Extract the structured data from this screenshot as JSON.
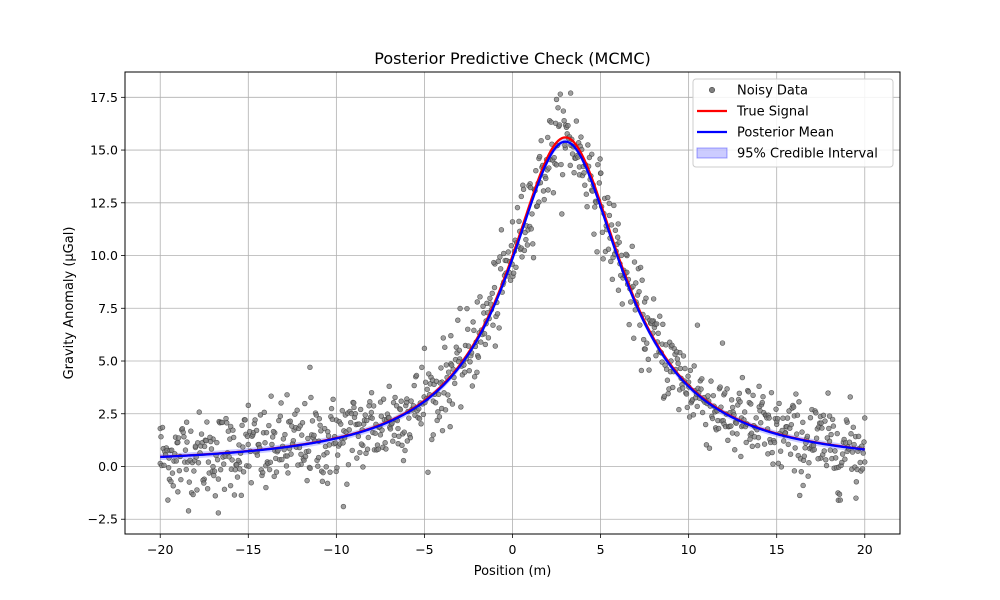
{
  "chart_data": {
    "type": "scatter",
    "title": "Posterior Predictive Check (MCMC)",
    "xlabel": "Position (m)",
    "ylabel": "Gravity Anomaly (μGal)",
    "xlim": [
      -22,
      22
    ],
    "ylim": [
      -3.2,
      18.7
    ],
    "xticks": [
      -20,
      -15,
      -10,
      -5,
      0,
      5,
      10,
      15,
      20
    ],
    "xtick_labels": [
      "−20",
      "−15",
      "−10",
      "−5",
      "0",
      "5",
      "10",
      "15",
      "20"
    ],
    "yticks": [
      -2.5,
      0.0,
      2.5,
      5.0,
      7.5,
      10.0,
      12.5,
      15.0,
      17.5
    ],
    "ytick_labels": [
      "−2.5",
      "0.0",
      "2.5",
      "5.0",
      "7.5",
      "10.0",
      "12.5",
      "15.0",
      "17.5"
    ],
    "grid": true,
    "legend_position": "top-right",
    "legend": [
      {
        "label": "Noisy Data",
        "kind": "marker",
        "color": "#7f7f7f"
      },
      {
        "label": "True Signal",
        "kind": "line",
        "color": "#ff0000"
      },
      {
        "label": "Posterior Mean",
        "kind": "line",
        "color": "#0000ff"
      },
      {
        "label": "95% Credible Interval",
        "kind": "patch",
        "color": "#0000ff"
      }
    ],
    "model": {
      "amplitude": 15.4,
      "center": 3.0,
      "half_width": 4.0,
      "noise_sd": 1.0,
      "n_points": 1000
    },
    "series": [
      {
        "name": "Noisy Data",
        "style": "scatter",
        "color": "#7f7f7f",
        "points": [
          [
            -20.0,
            1.8
          ],
          [
            -19.5,
            0.4
          ],
          [
            -19.0,
            -1.2
          ],
          [
            -18.5,
            2.1
          ],
          [
            -18.0,
            0.9
          ],
          [
            -17.5,
            -0.6
          ],
          [
            -17.0,
            1.3
          ],
          [
            -16.7,
            -2.2
          ],
          [
            -16.0,
            1.9
          ],
          [
            -15.5,
            0.2
          ],
          [
            -15.0,
            2.9
          ],
          [
            -14.5,
            0.7
          ],
          [
            -14.0,
            -1.0
          ],
          [
            -13.5,
            1.6
          ],
          [
            -12.8,
            3.4
          ],
          [
            -12.0,
            0.1
          ],
          [
            -11.5,
            4.7
          ],
          [
            -11.0,
            1.2
          ],
          [
            -10.5,
            -0.8
          ],
          [
            -10.0,
            2.2
          ],
          [
            -9.6,
            -1.9
          ],
          [
            -9.0,
            2.8
          ],
          [
            -8.5,
            1.0
          ],
          [
            -8.0,
            3.5
          ],
          [
            -7.5,
            1.5
          ],
          [
            -7.0,
            3.8
          ],
          [
            -6.5,
            1.8
          ],
          [
            -6.0,
            3.2
          ],
          [
            -5.0,
            5.6
          ],
          [
            -4.5,
            1.5
          ],
          [
            -4.0,
            4.0
          ],
          [
            -3.5,
            6.2
          ],
          [
            -3.0,
            5.1
          ],
          [
            -2.0,
            7.8
          ],
          [
            -1.5,
            6.9
          ],
          [
            -1.0,
            9.6
          ],
          [
            -0.5,
            10.1
          ],
          [
            0.0,
            11.6
          ],
          [
            0.5,
            12.8
          ],
          [
            1.0,
            13.4
          ],
          [
            1.5,
            14.6
          ],
          [
            2.0,
            15.6
          ],
          [
            2.5,
            17.4
          ],
          [
            3.0,
            15.1
          ],
          [
            3.3,
            17.7
          ],
          [
            3.8,
            14.2
          ],
          [
            4.5,
            14.8
          ],
          [
            5.0,
            13.9
          ],
          [
            5.5,
            11.9
          ],
          [
            6.0,
            11.5
          ],
          [
            6.5,
            10.0
          ],
          [
            7.0,
            8.7
          ],
          [
            7.5,
            7.8
          ],
          [
            8.0,
            6.9
          ],
          [
            8.5,
            5.8
          ],
          [
            9.0,
            5.0
          ],
          [
            9.5,
            5.4
          ],
          [
            10.0,
            4.0
          ],
          [
            10.5,
            6.7
          ],
          [
            11.0,
            3.1
          ],
          [
            11.5,
            2.6
          ],
          [
            12.0,
            3.4
          ],
          [
            12.5,
            2.8
          ],
          [
            13.0,
            2.3
          ],
          [
            13.5,
            1.5
          ],
          [
            14.0,
            3.8
          ],
          [
            14.5,
            0.6
          ],
          [
            15.0,
            2.0
          ],
          [
            15.5,
            1.6
          ],
          [
            16.0,
            2.4
          ],
          [
            16.5,
            -0.9
          ],
          [
            17.0,
            2.7
          ],
          [
            17.5,
            0.4
          ],
          [
            18.0,
            1.2
          ],
          [
            18.5,
            -1.6
          ],
          [
            19.0,
            2.1
          ],
          [
            19.5,
            -1.5
          ],
          [
            20.0,
            2.3
          ]
        ]
      },
      {
        "name": "True Signal",
        "style": "line",
        "color": "#ff0000",
        "amplitude": 15.6
      },
      {
        "name": "Posterior Mean",
        "style": "line",
        "color": "#0000ff",
        "amplitude": 15.4
      },
      {
        "name": "95% Credible Interval",
        "style": "band",
        "color": "#0000ff",
        "alpha": 0.2
      }
    ]
  }
}
